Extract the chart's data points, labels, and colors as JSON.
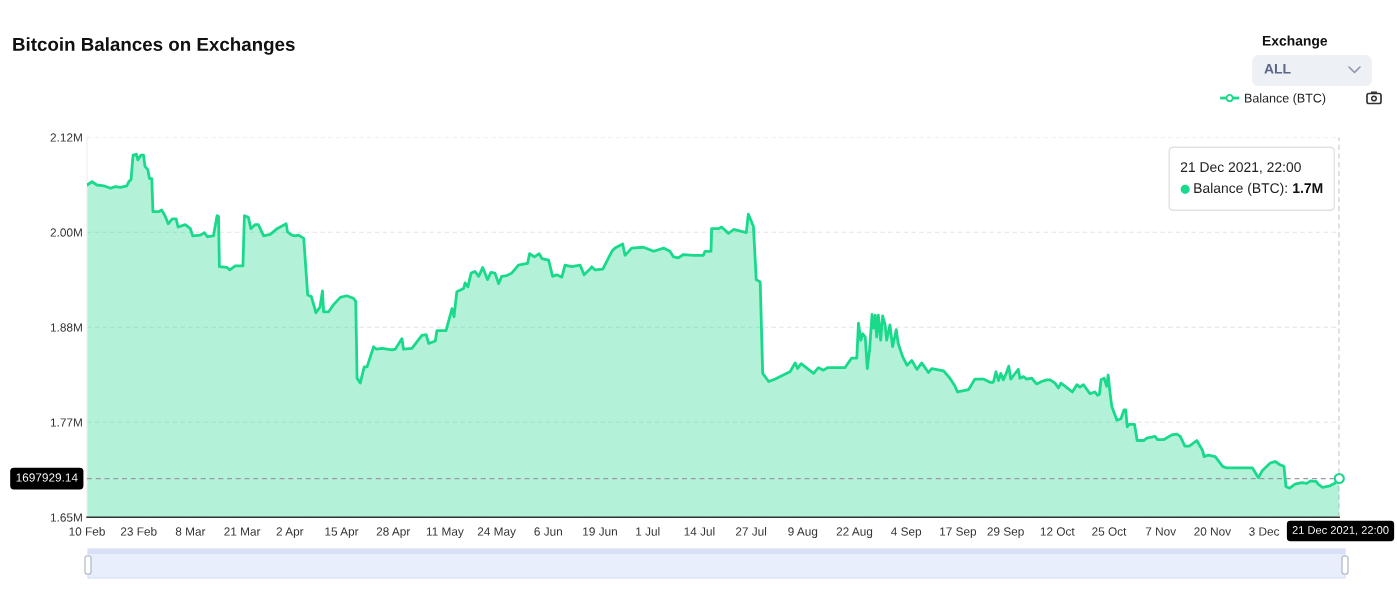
{
  "chart_data": {
    "type": "area",
    "title": "Bitcoin Balances on Exchanges",
    "x": [
      "2021-02-10T00:00",
      "2021-02-11T06:00",
      "2021-02-12T12:00",
      "2021-02-14T05:00",
      "2021-02-15T22:00",
      "2021-02-17T02:00",
      "2021-02-18T10:00",
      "2021-02-20T00:00",
      "2021-02-20T12:00",
      "2021-02-21T02:00",
      "2021-02-21T14:00",
      "2021-02-22T10:00",
      "2021-02-22T19:00",
      "2021-02-23T14:00",
      "2021-02-24T05:00",
      "2021-02-24T14:00",
      "2021-02-25T07:00",
      "2021-02-25T17:00",
      "2021-02-26T07:00",
      "2021-02-26T14:00",
      "2021-02-28T00:00",
      "2021-02-28T19:00",
      "2021-03-01T17:00",
      "2021-03-02T10:00",
      "2021-03-03T10:00",
      "2021-03-04T10:00",
      "2021-03-04T22:00",
      "2021-03-06T17:00",
      "2021-03-08T00:00",
      "2021-03-08T14:00",
      "2021-03-10T12:00",
      "2021-03-11T12:00",
      "2021-03-12T07:00",
      "2021-03-13T19:00",
      "2021-03-14T17:00",
      "2021-03-15T02:00",
      "2021-03-15T07:00",
      "2021-03-17T05:00",
      "2021-03-17T22:00",
      "2021-03-19T07:00",
      "2021-03-21T05:00",
      "2021-03-21T14:00",
      "2021-03-22T14:00",
      "2021-03-23T05:00",
      "2021-03-24T07:00",
      "2021-03-25T02:00",
      "2021-03-26T10:00",
      "2021-03-28T02:00",
      "2021-03-29T19:00",
      "2021-04-01T02:00",
      "2021-04-01T10:00",
      "2021-04-02T12:00",
      "2021-04-03T10:00",
      "2021-04-04T05:00",
      "2021-04-05T12:00",
      "2021-04-06T12:00",
      "2021-04-07T10:00",
      "2021-04-08T14:00",
      "2021-04-09T14:00",
      "2021-04-10T05:00",
      "2021-04-10T12:00",
      "2021-04-11T17:00",
      "2021-04-13T00:00",
      "2021-04-14T17:00",
      "2021-04-16T07:00",
      "2021-04-18T00:00",
      "2021-04-18T14:00",
      "2021-04-18T22:00",
      "2021-04-19T17:00",
      "2021-04-20T17:00",
      "2021-04-21T10:00",
      "2021-04-23T02:00",
      "2021-04-23T17:00",
      "2021-04-25T05:00",
      "2021-04-27T17:00",
      "2021-04-28T12:00",
      "2021-04-30T05:00",
      "2021-04-30T14:00",
      "2021-05-02T17:00",
      "2021-05-05T05:00",
      "2021-05-06T07:00",
      "2021-05-06T22:00",
      "2021-05-08T14:00",
      "2021-05-09T00:00",
      "2021-05-11T07:00",
      "2021-05-12T19:00",
      "2021-05-13T07:00",
      "2021-05-14T00:00",
      "2021-05-15T17:00",
      "2021-05-16T02:00",
      "2021-05-16T19:00",
      "2021-05-17T14:00",
      "2021-05-18T14:00",
      "2021-05-19T12:00",
      "2021-05-20T12:00",
      "2021-05-21T17:00",
      "2021-05-22T14:00",
      "2021-05-23T14:00",
      "2021-05-24T12:00",
      "2021-05-25T07:00",
      "2021-05-26T14:00",
      "2021-05-27T19:00",
      "2021-05-29T12:00",
      "2021-05-31T19:00",
      "2021-06-01T07:00",
      "2021-06-02T12:00",
      "2021-06-03T17:00",
      "2021-06-04T10:00",
      "2021-06-06T02:00",
      "2021-06-07T02:00",
      "2021-06-08T02:00",
      "2021-06-09T10:00",
      "2021-06-10T05:00",
      "2021-06-11T22:00",
      "2021-06-14T00:00",
      "2021-06-15T00:00",
      "2021-06-16T12:00",
      "2021-06-16T22:00",
      "2021-06-17T19:00",
      "2021-06-19T17:00",
      "2021-06-22T00:00",
      "2021-06-22T19:00",
      "2021-06-24T17:00",
      "2021-06-25T07:00",
      "2021-06-27T00:00",
      "2021-06-29T22:00",
      "2021-07-02T12:00",
      "2021-07-05T00:00",
      "2021-07-06T14:00",
      "2021-07-07T12:00",
      "2021-07-08T17:00",
      "2021-07-10T00:00",
      "2021-07-12T12:00",
      "2021-07-15T00:00",
      "2021-07-15T10:00",
      "2021-07-16T22:00",
      "2021-07-17T02:00",
      "2021-07-18T19:00",
      "2021-07-19T14:00",
      "2021-07-20T12:00",
      "2021-07-21T07:00",
      "2021-07-22T14:00",
      "2021-07-25T19:00",
      "2021-07-26T07:00",
      "2021-07-27T14:00",
      "2021-07-28T07:00",
      "2021-07-29T07:00",
      "2021-07-29T22:00",
      "2021-07-31T10:00",
      "2021-08-02T02:00",
      "2021-08-03T17:00",
      "2021-08-05T19:00",
      "2021-08-07T02:00",
      "2021-08-07T17:00",
      "2021-08-08T14:00",
      "2021-08-11T17:00",
      "2021-08-12T22:00",
      "2021-08-14T05:00",
      "2021-08-15T05:00",
      "2021-08-19T14:00",
      "2021-08-21T07:00",
      "2021-08-22T14:00",
      "2021-08-23T00:00",
      "2021-08-23T14:00",
      "2021-08-24T02:00",
      "2021-08-24T17:00",
      "2021-08-25T05:00",
      "2021-08-25T19:00",
      "2021-08-26T10:00",
      "2021-08-26T19:00",
      "2021-08-27T05:00",
      "2021-08-27T14:00",
      "2021-08-28T00:00",
      "2021-08-28T14:00",
      "2021-08-29T02:00",
      "2021-08-29T17:00",
      "2021-08-30T02:00",
      "2021-08-30T22:00",
      "2021-08-31T14:00",
      "2021-09-01T12:00",
      "2021-09-02T00:00",
      "2021-09-03T02:00",
      "2021-09-04T05:00",
      "2021-09-05T10:00",
      "2021-09-06T17:00",
      "2021-09-07T22:00",
      "2021-09-09T14:00",
      "2021-09-10T10:00",
      "2021-09-13T10:00",
      "2021-09-15T00:00",
      "2021-09-16T07:00",
      "2021-09-16T22:00",
      "2021-09-19T17:00",
      "2021-09-21T07:00",
      "2021-09-23T10:00",
      "2021-09-25T02:00",
      "2021-09-25T22:00",
      "2021-09-26T14:00",
      "2021-09-27T05:00",
      "2021-09-27T19:00",
      "2021-09-28T10:00",
      "2021-09-29T02:00",
      "2021-09-29T19:00",
      "2021-09-30T07:00",
      "2021-10-01T02:00",
      "2021-10-02T05:00",
      "2021-10-02T14:00",
      "2021-10-03T12:00",
      "2021-10-04T07:00",
      "2021-10-05T14:00",
      "2021-10-06T19:00",
      "2021-10-08T02:00",
      "2021-10-09T07:00",
      "2021-10-10T05:00",
      "2021-10-11T10:00",
      "2021-10-12T07:00",
      "2021-10-12T22:00",
      "2021-10-14T00:00",
      "2021-10-15T19:00",
      "2021-10-16T22:00",
      "2021-10-17T17:00",
      "2021-10-18T14:00",
      "2021-10-20T05:00",
      "2021-10-21T12:00",
      "2021-10-22T02:00",
      "2021-10-22T14:00",
      "2021-10-23T00:00",
      "2021-10-23T19:00",
      "2021-10-24T10:00",
      "2021-10-24T19:00",
      "2021-10-25T07:00",
      "2021-10-25T17:00",
      "2021-10-27T00:00",
      "2021-10-28T00:00",
      "2021-10-28T19:00",
      "2021-10-29T05:00",
      "2021-10-29T14:00",
      "2021-10-30T02:00",
      "2021-10-31T10:00",
      "2021-11-01T02:00",
      "2021-11-02T19:00",
      "2021-11-03T12:00",
      "2021-11-05T14:00",
      "2021-11-06T05:00",
      "2021-11-07T17:00",
      "2021-11-09T19:00",
      "2021-11-11T00:00",
      "2021-11-11T22:00",
      "2021-11-12T17:00",
      "2021-11-13T02:00",
      "2021-11-14T05:00",
      "2021-11-16T02:00",
      "2021-11-17T12:00",
      "2021-11-17T22:00",
      "2021-11-19T00:00",
      "2021-11-20T17:00",
      "2021-11-22T14:00",
      "2021-11-23T14:00",
      "2021-11-30T02:00",
      "2021-12-01T14:00",
      "2021-12-02T14:00",
      "2021-12-04T12:00",
      "2021-12-05T19:00",
      "2021-12-07T00:00",
      "2021-12-08T00:00",
      "2021-12-08T12:00",
      "2021-12-09T10:00",
      "2021-12-10T19:00",
      "2021-12-12T12:00",
      "2021-12-13T17:00",
      "2021-12-14T17:00",
      "2021-12-16T05:00",
      "2021-12-16T14:00",
      "2021-12-17T17:00",
      "2021-12-19T14:00",
      "2021-12-20T19:00",
      "2021-12-21T22:00"
    ],
    "series": [
      {
        "name": "Balance (BTC)",
        "color": "#19d98b",
        "values": [
          2061000,
          2065000,
          2061000,
          2060000,
          2057000,
          2059000,
          2058000,
          2060000,
          2065000,
          2068000,
          2098000,
          2099000,
          2092000,
          2098000,
          2098000,
          2084000,
          2080000,
          2069000,
          2069000,
          2028000,
          2028000,
          2030000,
          2022000,
          2013000,
          2019000,
          2019000,
          2009000,
          2012000,
          2007000,
          1998000,
          1999000,
          2002000,
          1997000,
          1998000,
          2023000,
          2022000,
          1960000,
          1959000,
          1956000,
          1961000,
          1961000,
          2023000,
          2021000,
          2007000,
          2012000,
          2012000,
          1998000,
          2000000,
          2007000,
          2013000,
          2003000,
          1999000,
          1998000,
          1999000,
          1995000,
          1925000,
          1923000,
          1903000,
          1910000,
          1930000,
          1904000,
          1904000,
          1913000,
          1922000,
          1924000,
          1921000,
          1917000,
          1822000,
          1816000,
          1836000,
          1836000,
          1861000,
          1858000,
          1859000,
          1857000,
          1858000,
          1871000,
          1858000,
          1859000,
          1875000,
          1876000,
          1865000,
          1868000,
          1881000,
          1881000,
          1908000,
          1898000,
          1929000,
          1933000,
          1940000,
          1935000,
          1952000,
          1954000,
          1948000,
          1959000,
          1944000,
          1953000,
          1952000,
          1939000,
          1948000,
          1949000,
          1952000,
          1962000,
          1964000,
          1976000,
          1972000,
          1976000,
          1970000,
          1968000,
          1948000,
          1950000,
          1947000,
          1962000,
          1960000,
          1962000,
          1950000,
          1957000,
          1960000,
          1956000,
          1957000,
          1979000,
          1983000,
          1988000,
          1974000,
          1983000,
          1984000,
          1979000,
          1983000,
          1979000,
          1972000,
          1971000,
          1975000,
          1974000,
          1974000,
          1979000,
          1979000,
          2007000,
          2007000,
          2009000,
          2005000,
          2001000,
          2006000,
          2002000,
          2025000,
          2010000,
          1944000,
          1941000,
          1828000,
          1818000,
          1821000,
          1825000,
          1830000,
          1841000,
          1834000,
          1840000,
          1828000,
          1835000,
          1832000,
          1835000,
          1835000,
          1847000,
          1847000,
          1890000,
          1869000,
          1877000,
          1873000,
          1834000,
          1857000,
          1901000,
          1884000,
          1900000,
          1873000,
          1900000,
          1869000,
          1899000,
          1888000,
          1869000,
          1888000,
          1861000,
          1882000,
          1865000,
          1849000,
          1838000,
          1844000,
          1833000,
          1841000,
          1829000,
          1834000,
          1831000,
          1822000,
          1812000,
          1805000,
          1808000,
          1821000,
          1821000,
          1817000,
          1817000,
          1830000,
          1819000,
          1828000,
          1820000,
          1827000,
          1837000,
          1821000,
          1826000,
          1833000,
          1822000,
          1824000,
          1821000,
          1822000,
          1815000,
          1818000,
          1820000,
          1820000,
          1816000,
          1810000,
          1816000,
          1812000,
          1805000,
          1814000,
          1811000,
          1814000,
          1803000,
          1805000,
          1801000,
          1802000,
          1820000,
          1822000,
          1812000,
          1826000,
          1803000,
          1787000,
          1770000,
          1772000,
          1783000,
          1783000,
          1762000,
          1765000,
          1765000,
          1745000,
          1745000,
          1748000,
          1750000,
          1746000,
          1746000,
          1752000,
          1753000,
          1750000,
          1742000,
          1738000,
          1738000,
          1745000,
          1733000,
          1725000,
          1727000,
          1725000,
          1713000,
          1711000,
          1711000,
          1699000,
          1708000,
          1717000,
          1719000,
          1715000,
          1713000,
          1688000,
          1686000,
          1691000,
          1693000,
          1692000,
          1695000,
          1694000,
          1691000,
          1687000,
          1689000,
          1692000,
          1698000
        ]
      }
    ],
    "xlim": [
      "2021-02-10T00:00",
      "2021-12-21T22:00"
    ],
    "xticks": [
      {
        "value": "2021-02-10",
        "label": "10 Feb"
      },
      {
        "value": "2021-02-23",
        "label": "23 Feb"
      },
      {
        "value": "2021-03-08",
        "label": "8 Mar"
      },
      {
        "value": "2021-03-21",
        "label": "21 Mar"
      },
      {
        "value": "2021-04-02",
        "label": "2 Apr"
      },
      {
        "value": "2021-04-15",
        "label": "15 Apr"
      },
      {
        "value": "2021-04-28",
        "label": "28 Apr"
      },
      {
        "value": "2021-05-11",
        "label": "11 May"
      },
      {
        "value": "2021-05-24",
        "label": "24 May"
      },
      {
        "value": "2021-06-06",
        "label": "6 Jun"
      },
      {
        "value": "2021-06-19",
        "label": "19 Jun"
      },
      {
        "value": "2021-07-01",
        "label": "1 Jul"
      },
      {
        "value": "2021-07-14",
        "label": "14 Jul"
      },
      {
        "value": "2021-07-27",
        "label": "27 Jul"
      },
      {
        "value": "2021-08-09",
        "label": "9 Aug"
      },
      {
        "value": "2021-08-22",
        "label": "22 Aug"
      },
      {
        "value": "2021-09-04",
        "label": "4 Sep"
      },
      {
        "value": "2021-09-17",
        "label": "17 Sep"
      },
      {
        "value": "2021-09-29",
        "label": "29 Sep"
      },
      {
        "value": "2021-10-12",
        "label": "12 Oct"
      },
      {
        "value": "2021-10-25",
        "label": "25 Oct"
      },
      {
        "value": "2021-11-07",
        "label": "7 Nov"
      },
      {
        "value": "2021-11-20",
        "label": "20 Nov"
      },
      {
        "value": "2021-12-03",
        "label": "3 Dec"
      }
    ],
    "ylim": [
      1650000,
      2120000
    ],
    "yticks": [
      {
        "value": 1650000,
        "label": "1.65M"
      },
      {
        "value": 1767500,
        "label": "1.77M"
      },
      {
        "value": 1885000,
        "label": "1.88M"
      },
      {
        "value": 2002500,
        "label": "2.00M"
      },
      {
        "value": 2120000,
        "label": "2.12M"
      }
    ],
    "grid": "y",
    "legend": "top right",
    "ref_lines": [
      {
        "axis": "y",
        "value": 1697929.14,
        "label": "1697929.14",
        "color": "#9a9aa6",
        "line_style": "dashed"
      },
      {
        "axis": "x",
        "value": "2021-12-21T22:00",
        "label": "21 Dec 2021, 22:00",
        "color": "#9a9aa6",
        "line_style": "dashed"
      }
    ],
    "annotations": [
      "21 Dec 2021, 22:00\nBalance (BTC): 1.7M",
      "Exchange",
      "ALL"
    ]
  }
}
